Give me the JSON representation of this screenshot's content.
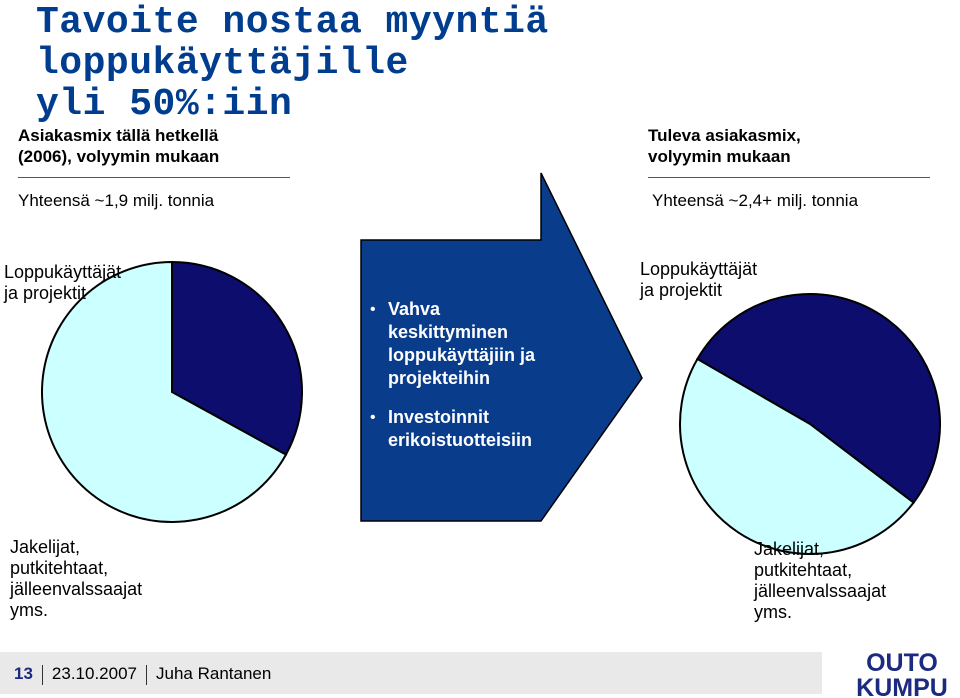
{
  "slide": {
    "title_line1": "Tavoite nostaa myyntiä loppukäyttäjille",
    "title_line2": "yli 50%:iin"
  },
  "left": {
    "header_line1": "Asiakasmix tällä hetkellä",
    "header_line2": "(2006), volyymin mukaan",
    "total": "Yhteensä ~1,9 milj. tonnia",
    "label_top_line1": "Loppukäyttäjät",
    "label_top_line2": "ja projektit",
    "label_bottom_line1": "Jakelijat,",
    "label_bottom_line2": "putkitehtaat,",
    "label_bottom_line3": "jälleenvalssaajat",
    "label_bottom_line4": "yms."
  },
  "right": {
    "header_line1": "Tuleva asiakasmix,",
    "header_line2": "volyymin mukaan",
    "total": "Yhteensä ~2,4+ milj. tonnia",
    "label_top_line1": "Loppukäyttäjät",
    "label_top_line2": "ja projektit",
    "label_bottom_line1": "Jakelijat,",
    "label_bottom_line2": "putkitehtaat,",
    "label_bottom_line3": "jälleenvalssaajat",
    "label_bottom_line4": "yms."
  },
  "arrow": {
    "bullet1_line1": "Vahva",
    "bullet1_line2": "keskittyminen",
    "bullet1_line3": "loppukäyttäjiin ja",
    "bullet1_line4": "projekteihin",
    "bullet2_line1": "Investoinnit",
    "bullet2_line2": "erikoistuotteisiin",
    "bullet_glyph": "•"
  },
  "footer": {
    "page": "13",
    "date": "23.10.2007",
    "author": "Juha Rantanen"
  },
  "logo": {
    "line1": "OUTO",
    "line2": "KUMPU"
  },
  "chart_data": [
    {
      "type": "pie",
      "categories": [
        "Loppukäyttäjät ja projektit",
        "Jakelijat, putkitehtaat, jälleenvalssaajat yms."
      ],
      "values": [
        33,
        67
      ],
      "colors": [
        "#0d0d6e",
        "#ccffff"
      ],
      "start_angle_deg": -90
    },
    {
      "type": "pie",
      "categories": [
        "Loppukäyttäjät ja projektit",
        "Jakelijat, putkitehtaat, jälleenvalssaajat yms."
      ],
      "values": [
        52,
        48
      ],
      "colors": [
        "#0d0d6e",
        "#ccffff"
      ],
      "start_angle_deg": -150
    }
  ],
  "colors": {
    "title": "#003d8f",
    "arrow_fill": "#0a3c8c",
    "pie_dark": "#0d0d6e",
    "pie_light": "#ccffff",
    "logo": "#1c2a80"
  }
}
